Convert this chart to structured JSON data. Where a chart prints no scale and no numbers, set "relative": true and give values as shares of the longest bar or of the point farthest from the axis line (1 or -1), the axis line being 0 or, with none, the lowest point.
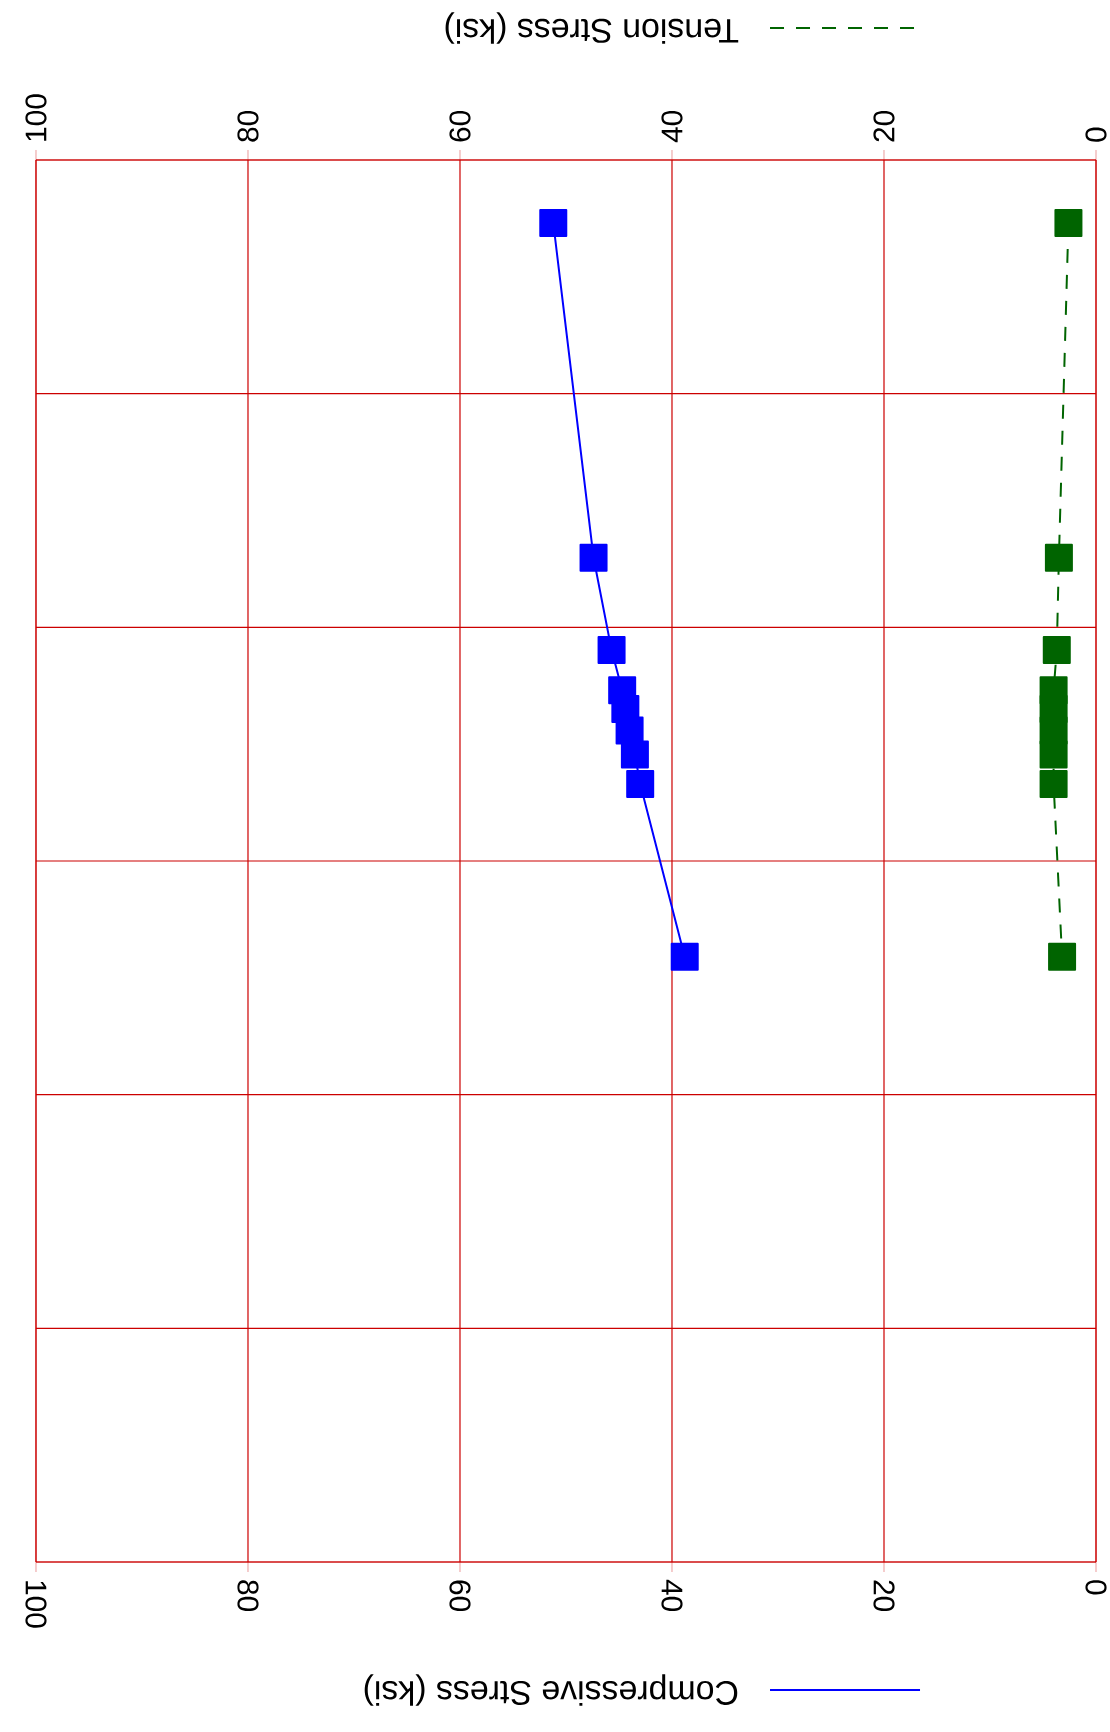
{
  "chart_data": {
    "type": "line",
    "relative": true,
    "xlabel": "Compressive Stress (ksi)",
    "x2label": "Tension Stress (ksi)",
    "xlim": [
      100,
      0
    ],
    "xticks": [
      100,
      80,
      60,
      40,
      20,
      0
    ],
    "x2lim": [
      100,
      0
    ],
    "x2ticks": [
      100,
      80,
      60,
      40,
      20,
      0
    ],
    "tick_labels": "x",
    "grid": true,
    "marker": "square",
    "series": [
      {
        "color": "#0000ff",
        "line_style": "solid",
        "x": [
          51.2,
          47.4,
          45.7,
          44.7,
          44.4,
          44.0,
          43.5,
          43.0,
          38.8
        ],
        "values": [
          1,
          0.75,
          0.681,
          0.651,
          0.637,
          0.621,
          0.603,
          0.581,
          0.452
        ]
      },
      {
        "color": "#006400",
        "line_style": "dashed",
        "axis": "x2",
        "x": [
          2.6,
          3.5,
          3.7,
          4.0,
          4.0,
          4.0,
          4.0,
          4.0,
          3.2
        ],
        "values": [
          1,
          0.75,
          0.681,
          0.651,
          0.637,
          0.621,
          0.603,
          0.581,
          0.452
        ]
      }
    ]
  }
}
